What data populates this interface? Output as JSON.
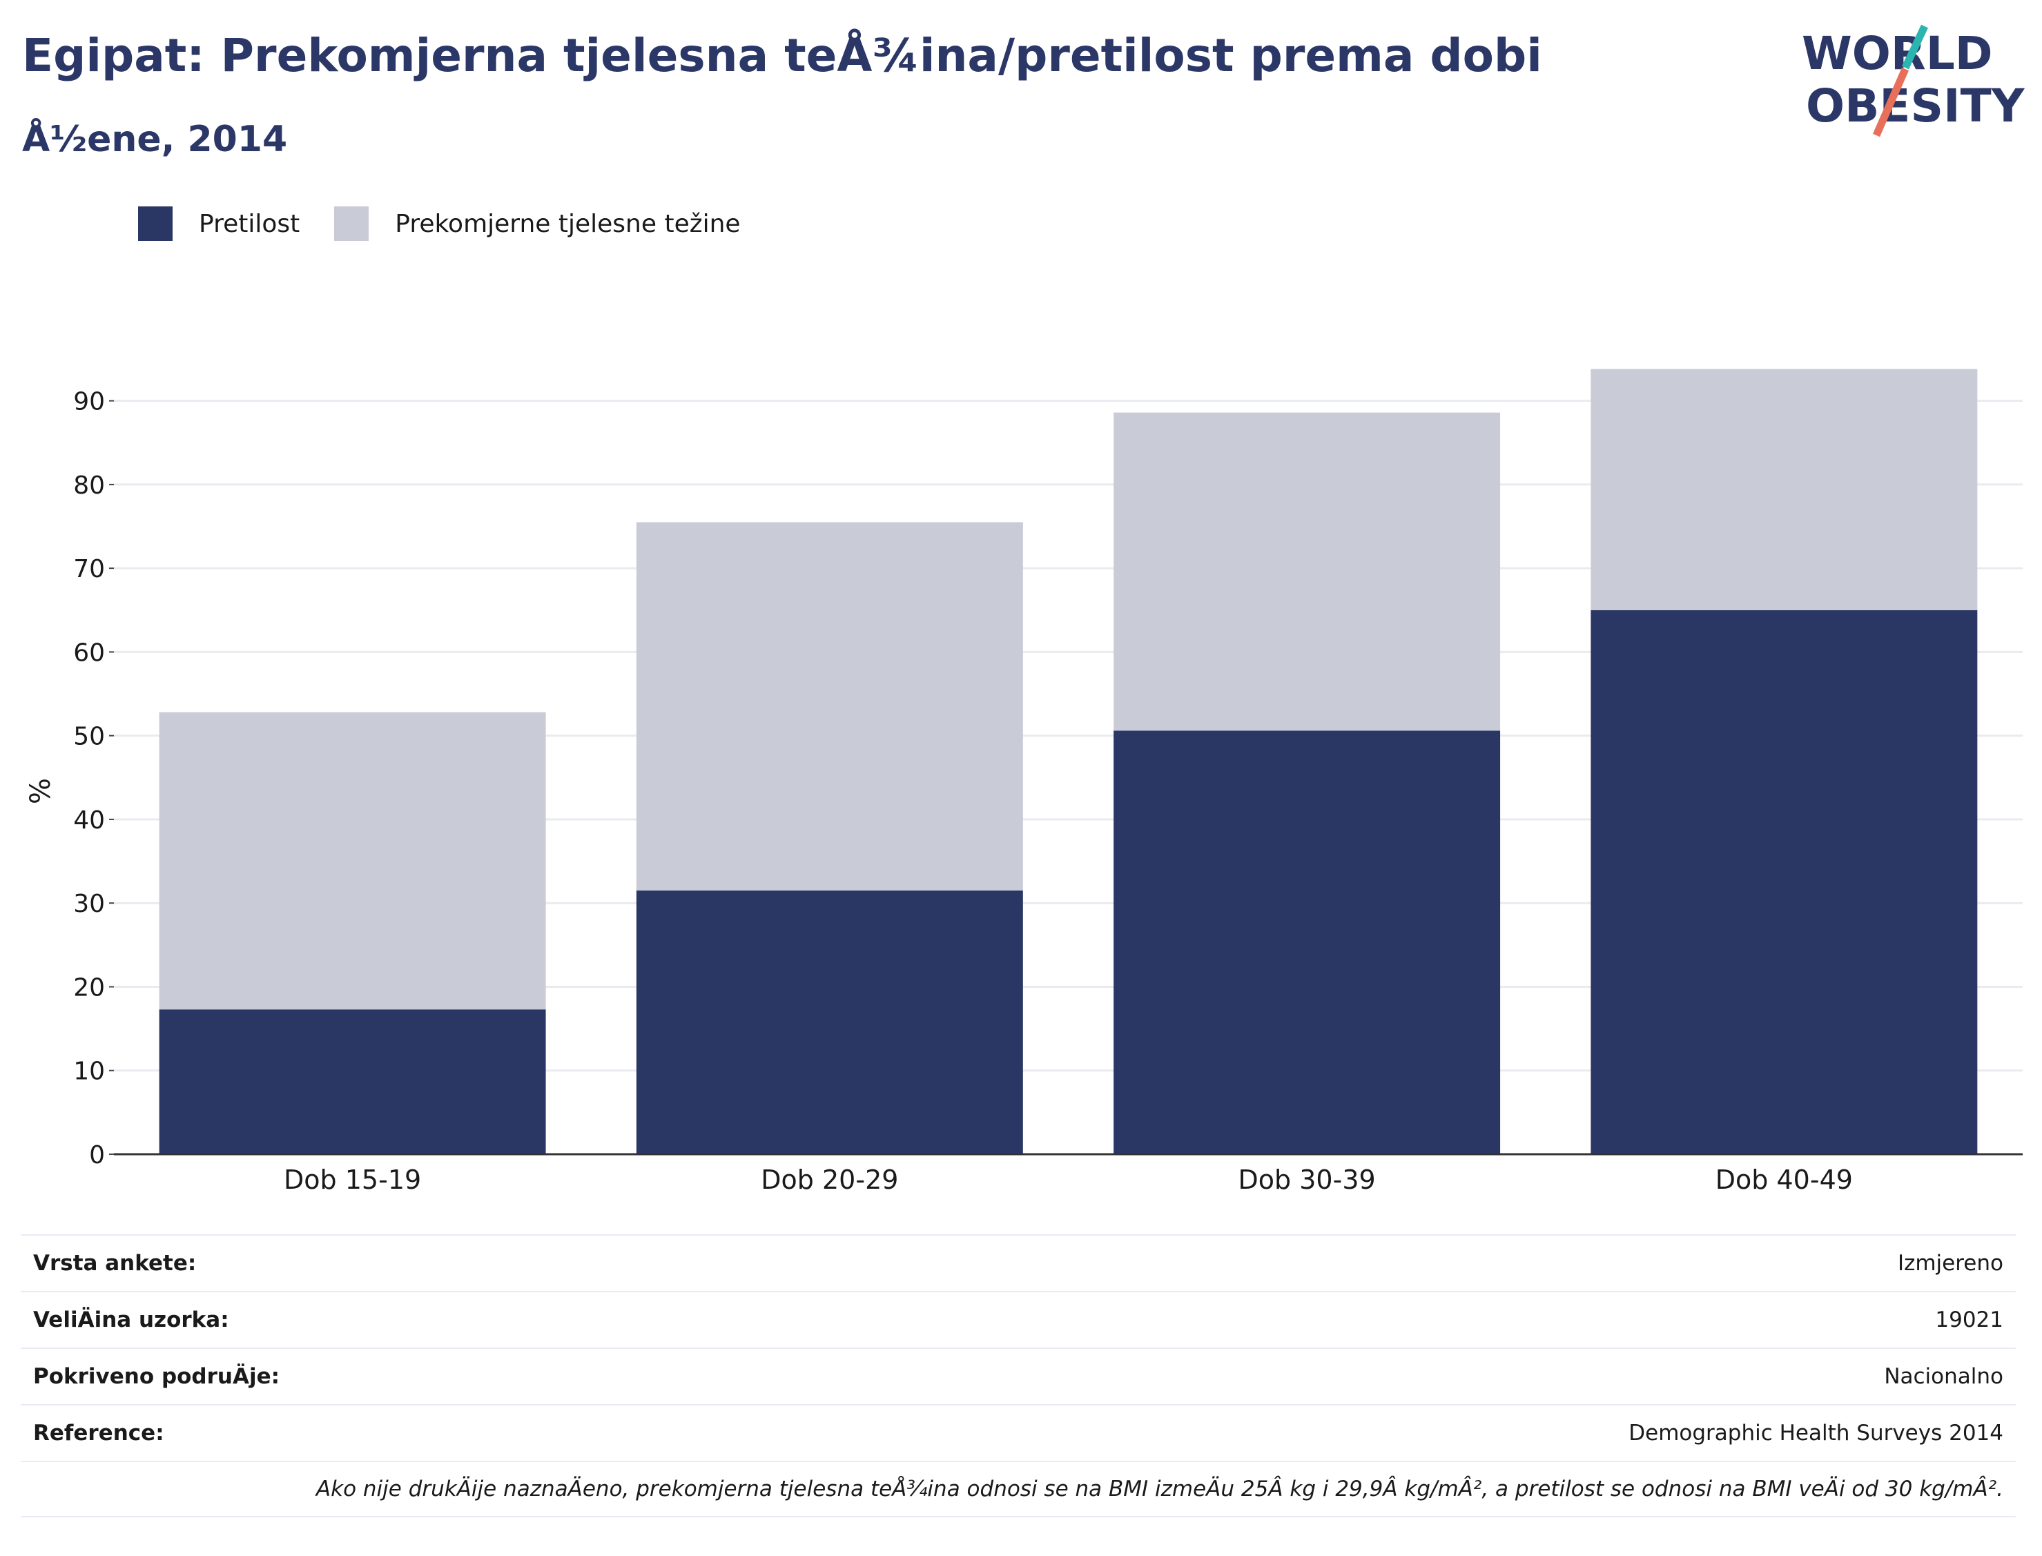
{
  "header": {
    "title": "Egipat: Prekomjerna tjelesna teÅ¾ina/pretilost prema dobi",
    "subtitle": "Å½ene, 2014"
  },
  "logo": {
    "line1": "WORLD",
    "line2": "OBESITY",
    "accent_colors": [
      "#2bb5b0",
      "#e8705a"
    ]
  },
  "legend": [
    {
      "label": "Pretilost",
      "color": "#2a3663"
    },
    {
      "label": "Prekomjerne tjelesne težine",
      "color": "#c9cbd6"
    }
  ],
  "chart_data": {
    "type": "bar",
    "stacked": true,
    "title": "",
    "xlabel": "",
    "ylabel": "%",
    "ylim": [
      0,
      95
    ],
    "yticks": [
      0,
      10,
      20,
      30,
      40,
      50,
      60,
      70,
      80,
      90
    ],
    "grid": true,
    "categories": [
      "Dob 15-19",
      "Dob 20-29",
      "Dob 30-39",
      "Dob 40-49"
    ],
    "series": [
      {
        "name": "Pretilost",
        "color": "#2a3663",
        "values": [
          17.3,
          31.5,
          50.6,
          65.0
        ]
      },
      {
        "name": "Prekomjerne tjelesne težine",
        "color": "#c9cbd6",
        "values": [
          35.5,
          44.0,
          38.0,
          28.8
        ]
      }
    ]
  },
  "info": {
    "rows": [
      {
        "key": "Vrsta ankete:",
        "value": "Izmjereno"
      },
      {
        "key": "VeliÄina uzorka:",
        "value": "19021"
      },
      {
        "key": "Pokriveno podruÄje:",
        "value": "Nacionalno"
      },
      {
        "key": "Reference:",
        "value": "Demographic Health Surveys 2014"
      }
    ],
    "note": "Ako nije drukÄije naznaÄeno, prekomjerna tjelesna teÅ¾ina odnosi se na BMI izmeÄu 25Â kg i 29,9Â kg/mÂ², a pretilost se odnosi na BMI veÄi od 30 kg/mÂ²."
  }
}
